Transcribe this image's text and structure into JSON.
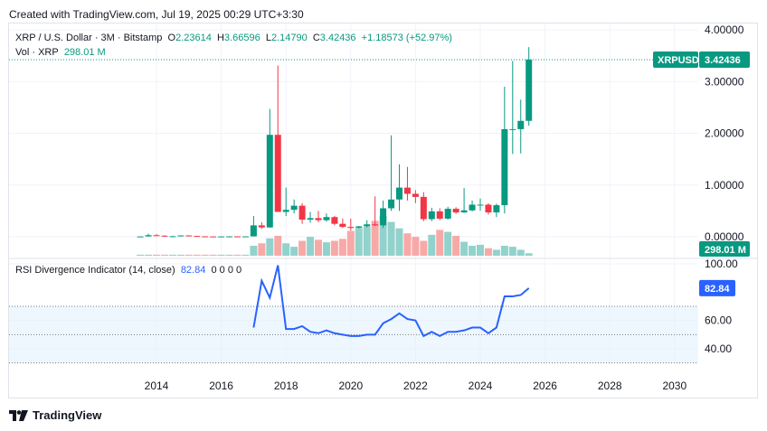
{
  "header": {
    "created_text": "Created with TradingView.com, Jul 19, 2025 00:29 UTC+3:30"
  },
  "legend": {
    "symbol": "XRP / U.S. Dollar · 3M · Bitstamp",
    "o_label": "O",
    "o_value": "2.23614",
    "h_label": "H",
    "h_value": "3.66596",
    "l_label": "L",
    "l_value": "2.14790",
    "c_label": "C",
    "c_value": "3.42436",
    "change": "+1.18573 (+52.97%)",
    "vol_label": "Vol · XRP",
    "vol_value": "298.01 M"
  },
  "rsi_legend": {
    "label": "RSI Divergence Indicator (14, close)",
    "value": "82.84",
    "zeros": "0 0 0 0"
  },
  "price_badge": {
    "symbol": "XRPUSD",
    "value": "3.42436"
  },
  "volume_badge": "298.01 M",
  "rsi_badge": "82.84",
  "footer": {
    "brand": "TradingView"
  },
  "colors": {
    "up": "#089981",
    "down": "#f23645",
    "vol_up": "#92d2cc",
    "vol_down": "#f7a9a7",
    "rsi": "#2962ff",
    "band": "#e3f2fd"
  },
  "chart_data": [
    {
      "type": "candlestick",
      "title": "XRP / U.S. Dollar · 3M · Bitstamp",
      "x_ticks": [
        "2014",
        "2016",
        "2018",
        "2020",
        "2022",
        "2024",
        "2026",
        "2028",
        "2030"
      ],
      "y_ticks": [
        "0.00000",
        "1.00000",
        "2.00000",
        "3.00000",
        "4.00000"
      ],
      "ylim": [
        -0.25,
        4.0
      ],
      "candles": [
        {
          "t": 2013.5,
          "o": 0.005,
          "h": 0.01,
          "l": 0.003,
          "c": 0.006
        },
        {
          "t": 2013.75,
          "o": 0.006,
          "h": 0.06,
          "l": 0.004,
          "c": 0.03
        },
        {
          "t": 2014.0,
          "o": 0.03,
          "h": 0.05,
          "l": 0.01,
          "c": 0.02
        },
        {
          "t": 2014.25,
          "o": 0.02,
          "h": 0.03,
          "l": 0.005,
          "c": 0.006
        },
        {
          "t": 2014.5,
          "o": 0.006,
          "h": 0.02,
          "l": 0.004,
          "c": 0.01
        },
        {
          "t": 2014.75,
          "o": 0.01,
          "h": 0.03,
          "l": 0.008,
          "c": 0.025
        },
        {
          "t": 2015.0,
          "o": 0.025,
          "h": 0.03,
          "l": 0.01,
          "c": 0.015
        },
        {
          "t": 2015.25,
          "o": 0.015,
          "h": 0.02,
          "l": 0.006,
          "c": 0.008
        },
        {
          "t": 2015.5,
          "o": 0.008,
          "h": 0.01,
          "l": 0.005,
          "c": 0.006
        },
        {
          "t": 2015.75,
          "o": 0.006,
          "h": 0.01,
          "l": 0.004,
          "c": 0.005
        },
        {
          "t": 2016.0,
          "o": 0.005,
          "h": 0.01,
          "l": 0.004,
          "c": 0.006
        },
        {
          "t": 2016.25,
          "o": 0.006,
          "h": 0.01,
          "l": 0.005,
          "c": 0.007
        },
        {
          "t": 2016.5,
          "o": 0.007,
          "h": 0.01,
          "l": 0.005,
          "c": 0.006
        },
        {
          "t": 2016.75,
          "o": 0.006,
          "h": 0.01,
          "l": 0.005,
          "c": 0.007
        },
        {
          "t": 2017.0,
          "o": 0.007,
          "h": 0.4,
          "l": 0.005,
          "c": 0.22
        },
        {
          "t": 2017.25,
          "o": 0.22,
          "h": 0.28,
          "l": 0.15,
          "c": 0.18
        },
        {
          "t": 2017.5,
          "o": 0.18,
          "h": 2.47,
          "l": 0.17,
          "c": 1.97
        },
        {
          "t": 2017.75,
          "o": 1.97,
          "h": 3.31,
          "l": 0.5,
          "c": 0.48
        },
        {
          "t": 2018.0,
          "o": 0.48,
          "h": 0.95,
          "l": 0.4,
          "c": 0.52
        },
        {
          "t": 2018.25,
          "o": 0.52,
          "h": 0.72,
          "l": 0.45,
          "c": 0.6
        },
        {
          "t": 2018.5,
          "o": 0.6,
          "h": 0.65,
          "l": 0.25,
          "c": 0.33
        },
        {
          "t": 2018.75,
          "o": 0.33,
          "h": 0.48,
          "l": 0.27,
          "c": 0.36
        },
        {
          "t": 2019.0,
          "o": 0.36,
          "h": 0.5,
          "l": 0.28,
          "c": 0.32
        },
        {
          "t": 2019.25,
          "o": 0.32,
          "h": 0.45,
          "l": 0.29,
          "c": 0.38
        },
        {
          "t": 2019.5,
          "o": 0.38,
          "h": 0.4,
          "l": 0.22,
          "c": 0.25
        },
        {
          "t": 2019.75,
          "o": 0.25,
          "h": 0.35,
          "l": 0.17,
          "c": 0.19
        },
        {
          "t": 2020.0,
          "o": 0.19,
          "h": 0.35,
          "l": 0.12,
          "c": 0.17
        },
        {
          "t": 2020.25,
          "o": 0.17,
          "h": 0.21,
          "l": 0.16,
          "c": 0.2
        },
        {
          "t": 2020.5,
          "o": 0.2,
          "h": 0.32,
          "l": 0.18,
          "c": 0.24
        },
        {
          "t": 2020.75,
          "o": 0.24,
          "h": 0.78,
          "l": 0.21,
          "c": 0.22
        },
        {
          "t": 2021.0,
          "o": 0.22,
          "h": 0.7,
          "l": 0.17,
          "c": 0.55
        },
        {
          "t": 2021.25,
          "o": 0.55,
          "h": 1.96,
          "l": 0.5,
          "c": 0.72
        },
        {
          "t": 2021.5,
          "o": 0.72,
          "h": 1.4,
          "l": 0.5,
          "c": 0.95
        },
        {
          "t": 2021.75,
          "o": 0.95,
          "h": 1.35,
          "l": 0.7,
          "c": 0.83
        },
        {
          "t": 2022.0,
          "o": 0.83,
          "h": 0.9,
          "l": 0.65,
          "c": 0.77
        },
        {
          "t": 2022.25,
          "o": 0.77,
          "h": 0.86,
          "l": 0.3,
          "c": 0.34
        },
        {
          "t": 2022.5,
          "o": 0.34,
          "h": 0.56,
          "l": 0.3,
          "c": 0.49
        },
        {
          "t": 2022.75,
          "o": 0.49,
          "h": 0.55,
          "l": 0.32,
          "c": 0.35
        },
        {
          "t": 2023.0,
          "o": 0.35,
          "h": 0.58,
          "l": 0.33,
          "c": 0.54
        },
        {
          "t": 2023.25,
          "o": 0.54,
          "h": 0.57,
          "l": 0.44,
          "c": 0.47
        },
        {
          "t": 2023.5,
          "o": 0.47,
          "h": 0.94,
          "l": 0.46,
          "c": 0.51
        },
        {
          "t": 2023.75,
          "o": 0.51,
          "h": 0.7,
          "l": 0.49,
          "c": 0.62
        },
        {
          "t": 2024.0,
          "o": 0.62,
          "h": 0.74,
          "l": 0.5,
          "c": 0.62
        },
        {
          "t": 2024.25,
          "o": 0.62,
          "h": 0.65,
          "l": 0.43,
          "c": 0.47
        },
        {
          "t": 2024.5,
          "o": 0.47,
          "h": 0.64,
          "l": 0.38,
          "c": 0.61
        },
        {
          "t": 2024.75,
          "o": 0.61,
          "h": 2.9,
          "l": 0.45,
          "c": 2.08
        },
        {
          "t": 2025.0,
          "o": 2.08,
          "h": 3.4,
          "l": 1.6,
          "c": 2.08
        },
        {
          "t": 2025.25,
          "o": 2.08,
          "h": 2.65,
          "l": 1.61,
          "c": 2.24
        },
        {
          "t": 2025.5,
          "o": 2.24,
          "h": 3.66596,
          "l": 2.1479,
          "c": 3.42436
        }
      ],
      "volume": [
        2,
        2,
        2,
        2,
        2,
        2,
        2,
        2,
        2,
        2,
        2,
        2,
        2,
        2,
        20,
        25,
        35,
        40,
        25,
        18,
        30,
        38,
        32,
        27,
        30,
        34,
        50,
        55,
        58,
        70,
        80,
        68,
        55,
        45,
        38,
        30,
        42,
        52,
        48,
        40,
        28,
        20,
        22,
        15,
        12,
        20,
        18,
        12,
        5
      ]
    },
    {
      "type": "line",
      "title": "RSI Divergence Indicator (14, close)",
      "y_ticks": [
        "40.00",
        "60.00",
        "100.00"
      ],
      "ylim": [
        28,
        101
      ],
      "band": [
        30,
        70
      ],
      "dotted_levels": [
        30,
        50,
        70
      ],
      "x": [
        2017.0,
        2017.25,
        2017.5,
        2017.75,
        2018.0,
        2018.25,
        2018.5,
        2018.75,
        2019.0,
        2019.25,
        2019.5,
        2019.75,
        2020.0,
        2020.25,
        2020.5,
        2020.75,
        2021.0,
        2021.25,
        2021.5,
        2021.75,
        2022.0,
        2022.25,
        2022.5,
        2022.75,
        2023.0,
        2023.25,
        2023.5,
        2023.75,
        2024.0,
        2024.25,
        2024.5,
        2024.75,
        2025.0,
        2025.25,
        2025.5
      ],
      "values": [
        55,
        88,
        76,
        99,
        54,
        54,
        56,
        52,
        51,
        53,
        51,
        50,
        49,
        49,
        50,
        50,
        58,
        61,
        65,
        61,
        60,
        49,
        52,
        49,
        52,
        52,
        53,
        55,
        55,
        51,
        55,
        77,
        77,
        78,
        82.84
      ]
    }
  ]
}
